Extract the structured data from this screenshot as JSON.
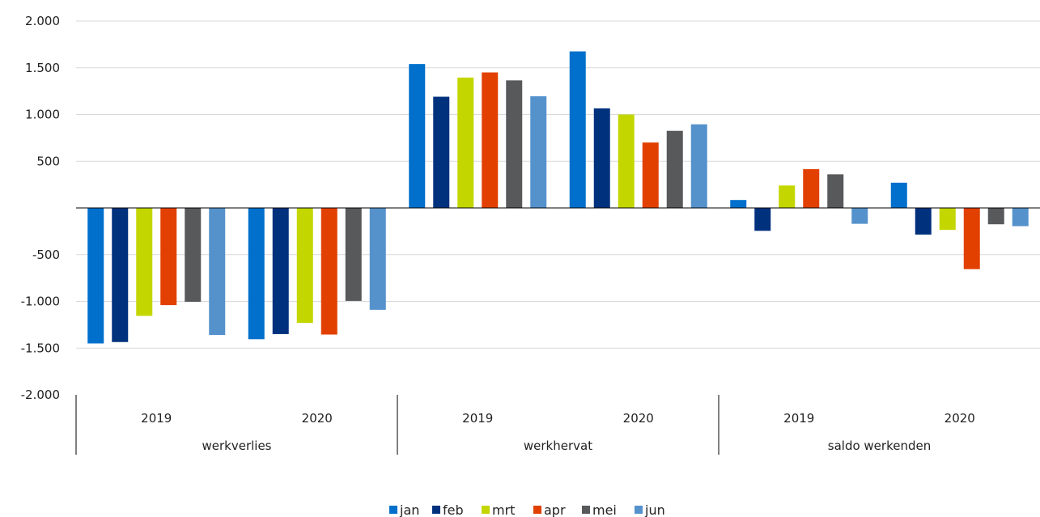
{
  "chart_data": {
    "type": "bar",
    "groups": [
      {
        "name": "werkverlies",
        "years": [
          "2019",
          "2020"
        ]
      },
      {
        "name": "werkhervat",
        "years": [
          "2019",
          "2020"
        ]
      },
      {
        "name": "saldo werkenden",
        "years": [
          "2019",
          "2020"
        ]
      }
    ],
    "categories": [
      "werkverlies 2019",
      "werkverlies 2020",
      "werkhervat 2019",
      "werkhervat 2020",
      "saldo werkenden 2019",
      "saldo werkenden 2020"
    ],
    "series": [
      {
        "name": "jan",
        "color": "#0070cc",
        "values": [
          -1450,
          -1405,
          1540,
          1675,
          85,
          270
        ]
      },
      {
        "name": "feb",
        "color": "#00317d",
        "values": [
          -1435,
          -1350,
          1190,
          1065,
          -245,
          -285
        ]
      },
      {
        "name": "mrt",
        "color": "#c3d600",
        "values": [
          -1155,
          -1230,
          1395,
          1000,
          240,
          -235
        ]
      },
      {
        "name": "apr",
        "color": "#e24000",
        "values": [
          -1040,
          -1355,
          1450,
          700,
          415,
          -655
        ]
      },
      {
        "name": "mei",
        "color": "#58595b",
        "values": [
          -1005,
          -995,
          1365,
          825,
          360,
          -175
        ]
      },
      {
        "name": "jun",
        "color": "#5592cc",
        "values": [
          -1360,
          -1090,
          1195,
          895,
          -170,
          -195
        ]
      }
    ],
    "ylim": [
      -2000,
      2000
    ],
    "yticks": [
      {
        "value": 2000,
        "label": "2.000"
      },
      {
        "value": 1500,
        "label": "1.500"
      },
      {
        "value": 1000,
        "label": "1.000"
      },
      {
        "value": 500,
        "label": "500"
      },
      {
        "value": -500,
        "label": "-500"
      },
      {
        "value": -1000,
        "label": "-1.000"
      },
      {
        "value": -1500,
        "label": "-1.500"
      },
      {
        "value": -2000,
        "label": "-2.000"
      }
    ],
    "grid": true,
    "legend_position": "bottom"
  }
}
